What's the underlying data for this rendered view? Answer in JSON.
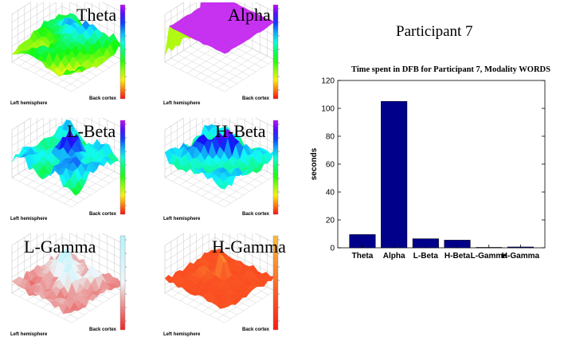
{
  "panels": [
    {
      "title": "Theta",
      "xlabel": "Left hemisphere",
      "ylabel": "Back cortex",
      "surface": "theta"
    },
    {
      "title": "Alpha",
      "xlabel": "Left hemisphere",
      "ylabel": "Back cortex",
      "surface": "alpha"
    },
    {
      "title": "L-Beta",
      "xlabel": "Left hemisphere",
      "ylabel": "Back cortex",
      "surface": "lbeta"
    },
    {
      "title": "H-Beta",
      "xlabel": "Left hemisphere",
      "ylabel": "Back cortex",
      "surface": "hbeta"
    },
    {
      "title": "L-Gamma",
      "xlabel": "Left hemisphere",
      "ylabel": "Back cortex",
      "surface": "lgamma"
    },
    {
      "title": "H-Gamma",
      "xlabel": "Left hemisphere",
      "ylabel": "Back cortex",
      "surface": "hgamma"
    }
  ],
  "participant_heading": "Participant 7",
  "chart_data": {
    "type": "bar",
    "title": "Time spent in DFB for Participant 7, Modality WORDS",
    "xlabel": "",
    "ylabel": "seconds",
    "categories": [
      "Theta",
      "Alpha",
      "L-Beta",
      "H-Beta",
      "L-Gamma",
      "H-Gamma"
    ],
    "values": [
      9.5,
      105,
      6.5,
      5.5,
      0.3,
      0.6
    ],
    "ylim": [
      0,
      120
    ],
    "yticks": [
      0,
      20,
      40,
      60,
      80,
      100,
      120
    ],
    "bar_color": "#00008b",
    "grid": false
  }
}
